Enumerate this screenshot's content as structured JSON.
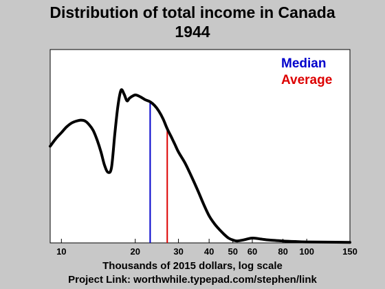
{
  "chart_data": {
    "type": "line",
    "title_lines": [
      "Distribution of total income in Canada",
      "1944"
    ],
    "xlabel": "Thousands of 2015 dollars, log scale",
    "footer": "Project Link: worthwhile.typepad.com/stephen/link",
    "x_scale": "log",
    "xlim": [
      9,
      150
    ],
    "ylim": [
      0,
      1
    ],
    "x_ticks": [
      10,
      20,
      30,
      40,
      50,
      60,
      80,
      100,
      150
    ],
    "x_tick_labels": [
      "10",
      "20",
      "30",
      "40",
      "50",
      "60",
      "80",
      "100",
      "150"
    ],
    "y_ticks_shown": false,
    "grid": false,
    "legend_position": "top-right",
    "series": [
      {
        "color": "#000000",
        "x": [
          9,
          9.5,
          10,
          10.5,
          11,
          11.5,
          12,
          12.5,
          13,
          13.5,
          14,
          14.5,
          15,
          15.5,
          16,
          16.5,
          17,
          17.5,
          18,
          18.5,
          19,
          20,
          21,
          22,
          23,
          24,
          25,
          26,
          27,
          28,
          29,
          30,
          32,
          34,
          36,
          38,
          40,
          42,
          44,
          46,
          48,
          50,
          52,
          55,
          60,
          65,
          70,
          80,
          90,
          100,
          120,
          150
        ],
        "y": [
          0.5,
          0.54,
          0.57,
          0.6,
          0.62,
          0.63,
          0.635,
          0.63,
          0.61,
          0.58,
          0.53,
          0.47,
          0.4,
          0.365,
          0.39,
          0.56,
          0.71,
          0.79,
          0.77,
          0.735,
          0.75,
          0.765,
          0.755,
          0.74,
          0.73,
          0.71,
          0.68,
          0.64,
          0.59,
          0.55,
          0.51,
          0.47,
          0.41,
          0.34,
          0.27,
          0.2,
          0.14,
          0.1,
          0.07,
          0.045,
          0.025,
          0.015,
          0.01,
          0.015,
          0.025,
          0.02,
          0.015,
          0.01,
          0.007,
          0.005,
          0.004,
          0.003
        ]
      }
    ],
    "markers": [
      {
        "name": "Median",
        "color": "#0000cc",
        "x": 23,
        "y_top": 0.735
      },
      {
        "name": "Average",
        "color": "#dd0000",
        "x": 27,
        "y_top": 0.6
      }
    ]
  }
}
